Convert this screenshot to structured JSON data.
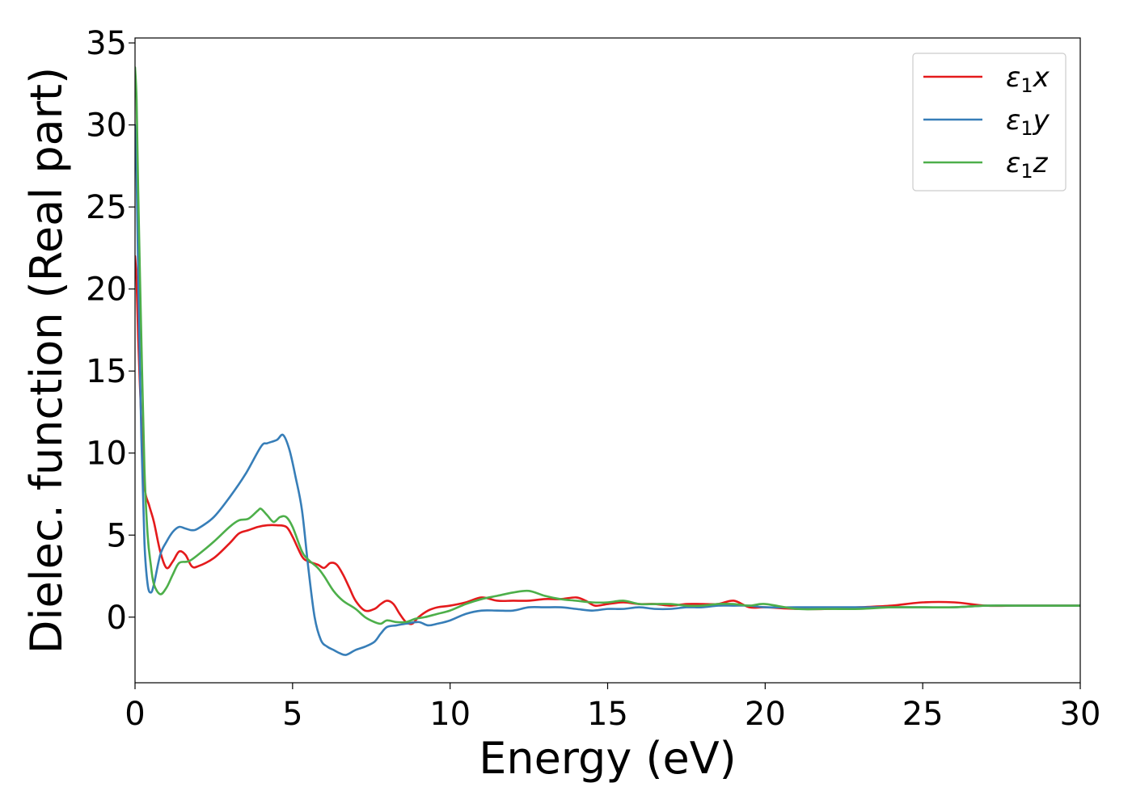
{
  "chart_data": {
    "type": "line",
    "xlabel": "Energy (eV)",
    "ylabel": "Dielec. function (Real part)",
    "xlim": [
      0,
      30
    ],
    "ylim": [
      -4,
      35.3
    ],
    "xticks": [
      0,
      5,
      10,
      15,
      20,
      25,
      30
    ],
    "yticks": [
      0,
      5,
      10,
      15,
      20,
      25,
      30,
      35
    ],
    "xtick_labels": [
      "0",
      "5",
      "10",
      "15",
      "20",
      "25",
      "30"
    ],
    "ytick_labels": [
      "0",
      "5",
      "10",
      "15",
      "20",
      "25",
      "30",
      "35"
    ],
    "grid": false,
    "legend_position": "top-right",
    "series": [
      {
        "name": "ε₁x",
        "legend_main": "ε",
        "legend_sub": "1",
        "legend_var": "x",
        "color": "#e41a1c",
        "x": [
          0,
          0.05,
          0.1,
          0.2,
          0.3,
          0.45,
          0.6,
          0.8,
          1.0,
          1.2,
          1.4,
          1.6,
          1.8,
          2.0,
          2.5,
          3.0,
          3.3,
          3.6,
          3.9,
          4.2,
          4.5,
          4.8,
          5.0,
          5.3,
          5.5,
          5.8,
          6.0,
          6.2,
          6.4,
          6.6,
          6.8,
          7.0,
          7.3,
          7.6,
          7.8,
          8.0,
          8.2,
          8.4,
          8.6,
          8.8,
          9.0,
          9.3,
          9.6,
          10.0,
          10.5,
          11.0,
          11.5,
          12.0,
          12.5,
          13.0,
          13.5,
          14.0,
          14.3,
          14.6,
          15.0,
          15.5,
          16.0,
          16.5,
          17.0,
          17.5,
          18.0,
          18.5,
          19.0,
          19.5,
          20.0,
          21.0,
          22.0,
          23.0,
          24.0,
          25.0,
          26.0,
          27.0,
          28.0,
          29.0,
          30.0
        ],
        "y": [
          22.0,
          20.5,
          17.0,
          12.0,
          8.0,
          6.8,
          5.8,
          4.0,
          3.0,
          3.4,
          4.0,
          3.8,
          3.1,
          3.1,
          3.6,
          4.5,
          5.1,
          5.3,
          5.5,
          5.6,
          5.6,
          5.5,
          4.9,
          3.7,
          3.4,
          3.2,
          3.0,
          3.3,
          3.2,
          2.6,
          1.8,
          1.0,
          0.4,
          0.5,
          0.8,
          1.0,
          0.8,
          0.2,
          -0.3,
          -0.4,
          0.0,
          0.4,
          0.6,
          0.7,
          0.9,
          1.2,
          1.0,
          1.0,
          1.0,
          1.1,
          1.1,
          1.2,
          1.0,
          0.7,
          0.8,
          0.9,
          0.8,
          0.8,
          0.7,
          0.8,
          0.8,
          0.8,
          1.0,
          0.6,
          0.6,
          0.5,
          0.5,
          0.6,
          0.7,
          0.9,
          0.9,
          0.7,
          0.7,
          0.7,
          0.7
        ]
      },
      {
        "name": "ε₁y",
        "legend_main": "ε",
        "legend_sub": "1",
        "legend_var": "y",
        "color": "#377eb8",
        "x": [
          0,
          0.05,
          0.1,
          0.2,
          0.3,
          0.4,
          0.5,
          0.6,
          0.8,
          1.0,
          1.2,
          1.4,
          1.6,
          1.8,
          2.0,
          2.5,
          3.0,
          3.5,
          4.0,
          4.2,
          4.5,
          4.7,
          4.9,
          5.1,
          5.3,
          5.5,
          5.7,
          5.9,
          6.1,
          6.3,
          6.5,
          6.7,
          7.0,
          7.3,
          7.6,
          7.8,
          8.0,
          8.3,
          8.6,
          9.0,
          9.3,
          9.6,
          10.0,
          10.5,
          11.0,
          11.5,
          12.0,
          12.5,
          13.0,
          13.5,
          14.0,
          14.5,
          15.0,
          15.5,
          16.0,
          16.5,
          17.0,
          17.5,
          18.0,
          18.5,
          19.0,
          19.5,
          20.0,
          21.0,
          22.0,
          23.0,
          24.0,
          25.0,
          26.0,
          27.0,
          28.0,
          29.0,
          30.0
        ],
        "y": [
          30.0,
          27.0,
          21.0,
          11.0,
          4.5,
          2.0,
          1.5,
          2.0,
          3.8,
          4.6,
          5.2,
          5.5,
          5.4,
          5.3,
          5.4,
          6.1,
          7.3,
          8.7,
          10.4,
          10.6,
          10.8,
          11.1,
          10.2,
          8.5,
          6.5,
          3.0,
          0.0,
          -1.4,
          -1.8,
          -2.0,
          -2.2,
          -2.3,
          -2.0,
          -1.8,
          -1.5,
          -1.0,
          -0.6,
          -0.5,
          -0.4,
          -0.3,
          -0.5,
          -0.4,
          -0.2,
          0.2,
          0.4,
          0.4,
          0.4,
          0.6,
          0.6,
          0.6,
          0.5,
          0.4,
          0.5,
          0.5,
          0.6,
          0.5,
          0.5,
          0.6,
          0.6,
          0.7,
          0.7,
          0.7,
          0.6,
          0.6,
          0.6,
          0.6,
          0.6,
          0.6,
          0.6,
          0.7,
          0.7,
          0.7,
          0.7
        ]
      },
      {
        "name": "ε₁z",
        "legend_main": "ε",
        "legend_sub": "1",
        "legend_var": "z",
        "color": "#4daf4a",
        "x": [
          0,
          0.05,
          0.1,
          0.2,
          0.3,
          0.4,
          0.5,
          0.6,
          0.8,
          1.0,
          1.2,
          1.4,
          1.7,
          2.0,
          2.5,
          3.0,
          3.3,
          3.6,
          3.9,
          4.0,
          4.2,
          4.4,
          4.6,
          4.8,
          5.0,
          5.3,
          5.5,
          5.8,
          6.0,
          6.3,
          6.6,
          7.0,
          7.3,
          7.6,
          7.8,
          8.0,
          8.3,
          8.6,
          8.9,
          9.2,
          9.6,
          10.0,
          10.5,
          11.0,
          11.5,
          12.0,
          12.5,
          13.0,
          13.5,
          14.0,
          14.5,
          15.0,
          15.5,
          16.0,
          16.5,
          17.0,
          17.5,
          18.0,
          18.5,
          19.0,
          19.5,
          20.0,
          21.0,
          22.0,
          23.0,
          24.0,
          25.0,
          26.0,
          27.0,
          28.0,
          29.0,
          30.0
        ],
        "y": [
          33.5,
          31.5,
          26.0,
          17.0,
          9.0,
          5.0,
          3.2,
          2.0,
          1.4,
          1.8,
          2.6,
          3.3,
          3.4,
          3.8,
          4.6,
          5.5,
          5.9,
          6.0,
          6.5,
          6.6,
          6.2,
          5.8,
          6.1,
          6.1,
          5.5,
          4.0,
          3.5,
          3.0,
          2.5,
          1.6,
          1.0,
          0.5,
          0.0,
          -0.3,
          -0.4,
          -0.2,
          -0.3,
          -0.3,
          -0.1,
          0.0,
          0.2,
          0.4,
          0.8,
          1.1,
          1.3,
          1.5,
          1.6,
          1.3,
          1.1,
          1.0,
          0.9,
          0.9,
          1.0,
          0.8,
          0.8,
          0.8,
          0.7,
          0.7,
          0.8,
          0.8,
          0.7,
          0.8,
          0.5,
          0.5,
          0.5,
          0.6,
          0.6,
          0.6,
          0.7,
          0.7,
          0.7,
          0.7
        ]
      }
    ]
  }
}
